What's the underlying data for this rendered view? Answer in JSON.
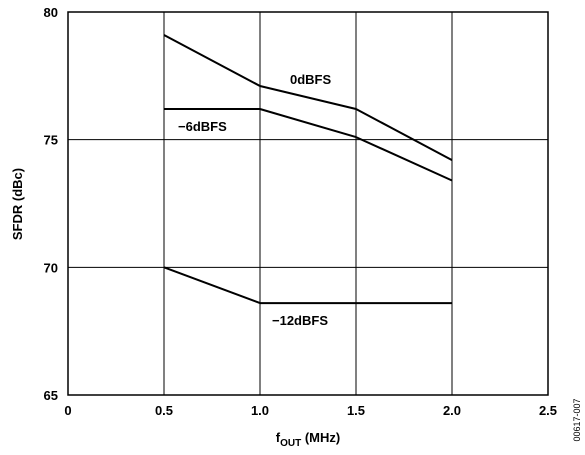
{
  "chart_data": {
    "type": "line",
    "title": "",
    "xlabel_main": "f",
    "xlabel_sub": "OUT",
    "xlabel_unit": " (MHz)",
    "ylabel": "SFDR (dBc)",
    "xlim": [
      0,
      2.5
    ],
    "ylim": [
      65,
      80
    ],
    "grid": true,
    "x_ticks": [
      0,
      0.5,
      1.0,
      1.5,
      2.0,
      2.5
    ],
    "x_tick_labels": [
      "0",
      "0.5",
      "1.0",
      "1.5",
      "2.0",
      "2.5"
    ],
    "y_ticks": [
      65,
      70,
      75,
      80
    ],
    "y_tick_labels": [
      "65",
      "70",
      "75",
      "80"
    ],
    "series": [
      {
        "name": "0dBFS",
        "x": [
          0.5,
          1.0,
          1.5,
          2.0
        ],
        "y": [
          79.1,
          77.1,
          76.2,
          74.2
        ]
      },
      {
        "name": "−6dBFS",
        "x": [
          0.5,
          1.0,
          1.5,
          2.0
        ],
        "y": [
          76.2,
          76.2,
          75.1,
          73.4
        ]
      },
      {
        "name": "−12dBFS",
        "x": [
          0.5,
          1.0,
          1.5,
          2.0
        ],
        "y": [
          70.0,
          68.6,
          68.6,
          68.6
        ]
      }
    ],
    "figure_code": "00617-007"
  }
}
